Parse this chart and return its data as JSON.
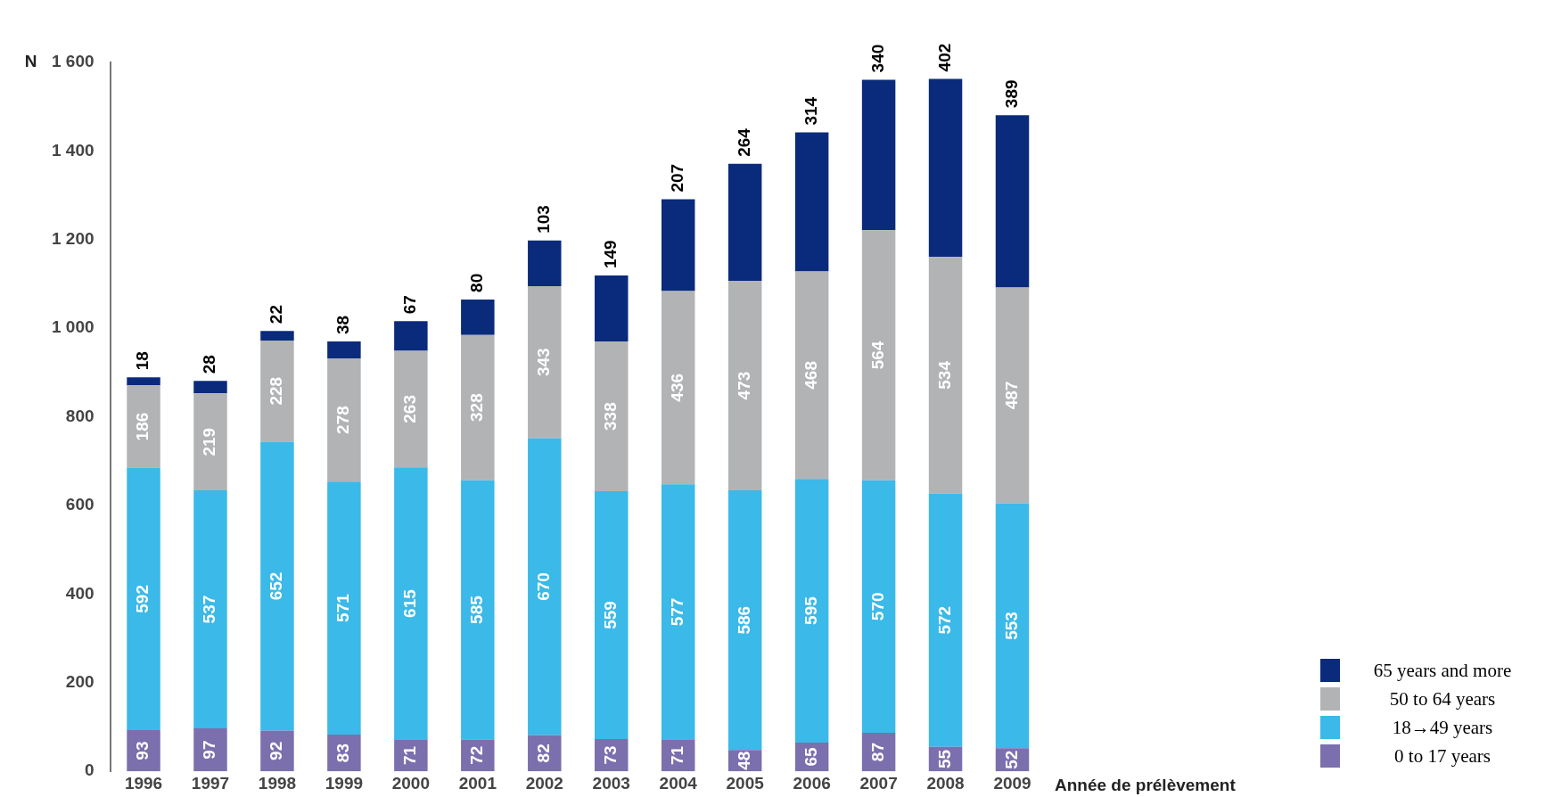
{
  "chart_data": {
    "type": "bar",
    "stacked": true,
    "ylabel": "N",
    "xlabel": "Année de prélèvement",
    "categories": [
      "1996",
      "1997",
      "1998",
      "1999",
      "2000",
      "2001",
      "2002",
      "2003",
      "2004",
      "2005",
      "2006",
      "2007",
      "2008",
      "2009"
    ],
    "series": [
      {
        "name": "0 to 17 years",
        "color": "#7b6fae",
        "values": [
          93,
          97,
          92,
          83,
          71,
          72,
          82,
          73,
          71,
          48,
          65,
          87,
          55,
          52
        ]
      },
      {
        "name": "18→49 years",
        "color": "#3bb9e8",
        "values": [
          592,
          537,
          652,
          571,
          615,
          585,
          670,
          559,
          577,
          586,
          595,
          570,
          572,
          553
        ]
      },
      {
        "name": "50 to 64 years",
        "color": "#b1b3b5",
        "values": [
          186,
          219,
          228,
          278,
          263,
          328,
          343,
          338,
          436,
          473,
          468,
          564,
          534,
          487
        ]
      },
      {
        "name": "65 years and more",
        "color": "#0a2b7b",
        "values": [
          18,
          28,
          22,
          38,
          67,
          80,
          103,
          149,
          207,
          264,
          314,
          340,
          402,
          389
        ]
      }
    ],
    "ylim": [
      0,
      1600
    ],
    "yticks": [
      0,
      200,
      400,
      600,
      800,
      {
        "value": 1000,
        "label": "1 000"
      },
      {
        "value": 1200,
        "label": "1 200"
      },
      {
        "value": 1400,
        "label": "1 400"
      },
      {
        "value": 1600,
        "label": "1 600"
      }
    ],
    "grid": false,
    "legend": "bottom right",
    "data_labels": true
  }
}
